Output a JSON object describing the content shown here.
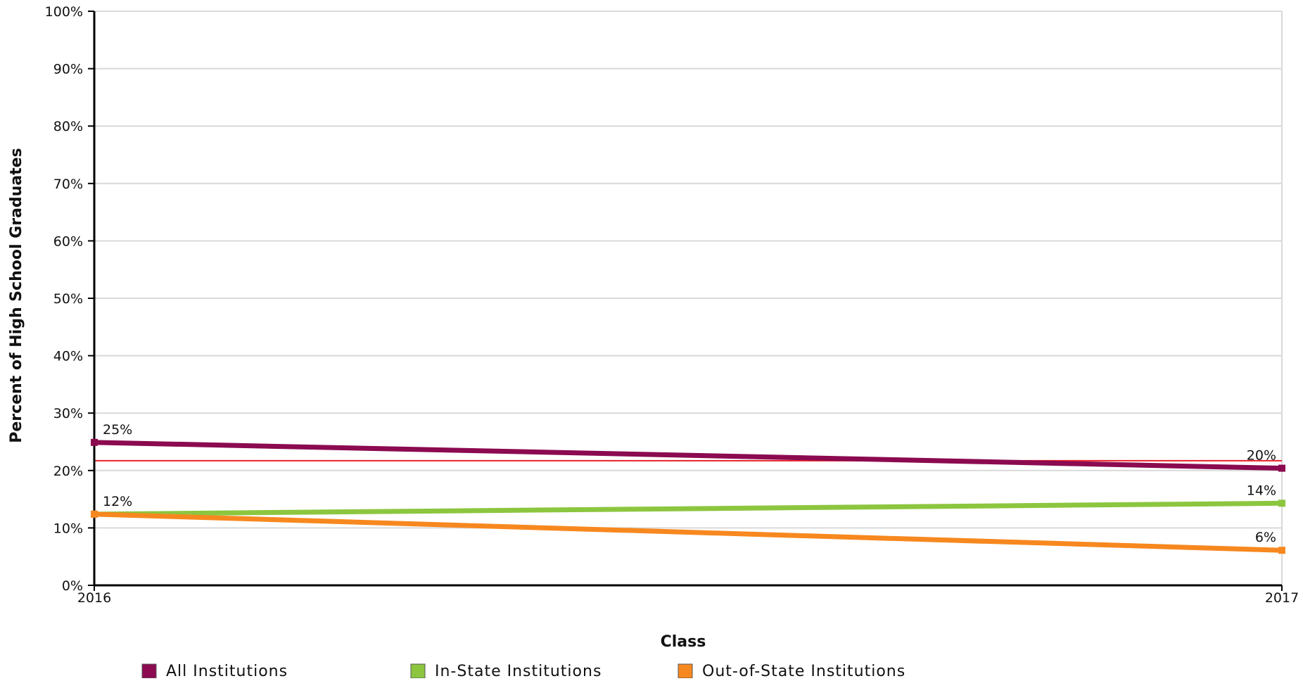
{
  "chart_data": {
    "type": "line",
    "title": "",
    "xlabel": "Class",
    "ylabel": "Percent of High School Graduates",
    "x": [
      "2016",
      "2017"
    ],
    "ylim": [
      0,
      100
    ],
    "yticks": [
      0,
      10,
      20,
      30,
      40,
      50,
      60,
      70,
      80,
      90,
      100
    ],
    "ytick_labels": [
      "0%",
      "10%",
      "20%",
      "30%",
      "40%",
      "50%",
      "60%",
      "70%",
      "80%",
      "90%",
      "100%"
    ],
    "grid": true,
    "legend_position": "bottom",
    "reference_line": {
      "value": 21.7,
      "color": "#e8202a"
    },
    "series": [
      {
        "name": "All Institutions",
        "values": [
          24.9,
          20.4
        ],
        "labels": [
          "25%",
          "20%"
        ],
        "color": "#8b0a50"
      },
      {
        "name": "In-State Institutions",
        "values": [
          12.4,
          14.3
        ],
        "labels": [
          "12%",
          "14%"
        ],
        "color": "#8cc63f"
      },
      {
        "name": "Out-of-State Institutions",
        "values": [
          12.4,
          6.1
        ],
        "labels": [
          "",
          "6%"
        ],
        "color": "#f7881f"
      }
    ]
  }
}
